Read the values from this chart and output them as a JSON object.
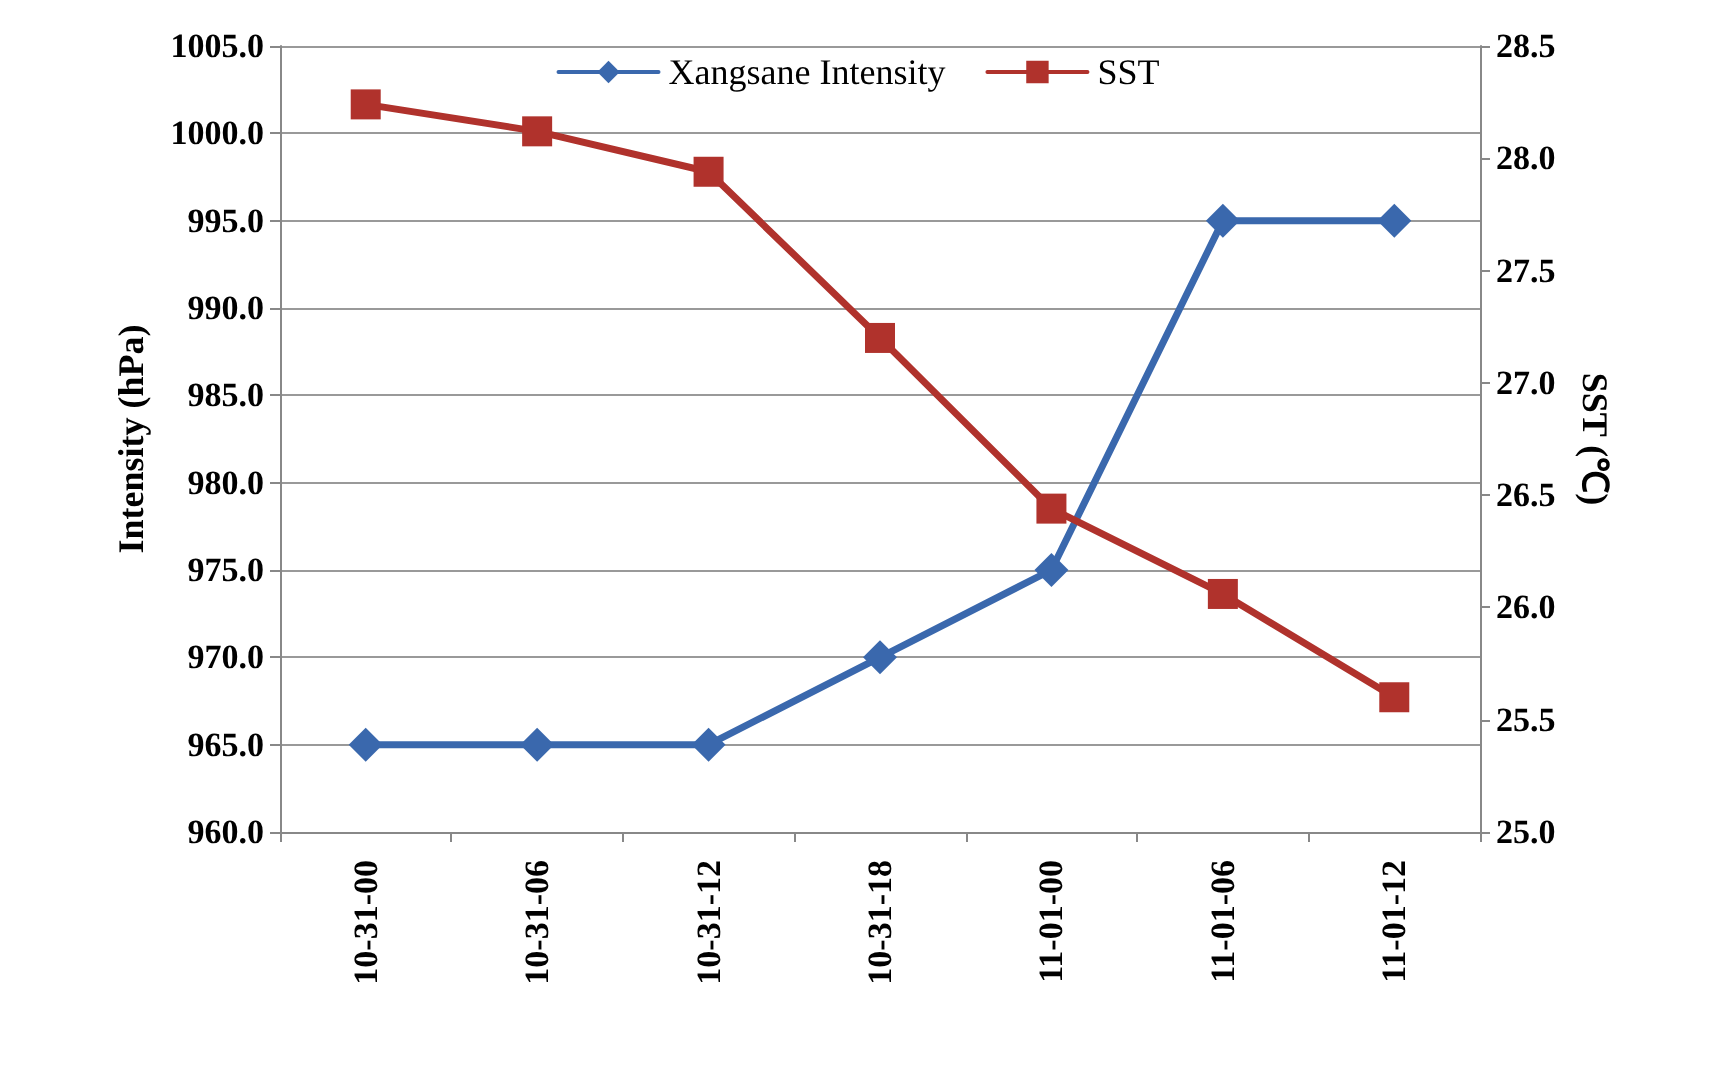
{
  "chart_data": {
    "type": "line",
    "categories": [
      "10-31-00",
      "10-31-06",
      "10-31-12",
      "10-31-18",
      "11-01-00",
      "11-01-06",
      "11-01-12"
    ],
    "ylabel": "Intensity (hPa)",
    "y2label": "SST (℃)",
    "series": [
      {
        "name": "Xangsane Intensity",
        "color": "#3a68ad",
        "marker": "diamond",
        "values": [
          965,
          965,
          965,
          970,
          975,
          995,
          995
        ]
      },
      {
        "name": "SST",
        "color": "#b0322c",
        "marker": "square",
        "axis": "y2",
        "values": [
          28.24,
          28.12,
          27.94,
          27.2,
          26.44,
          26.06,
          25.6
        ]
      }
    ],
    "ylim": [
      960,
      1005
    ],
    "yticks": [
      {
        "value": 960,
        "label": "960.0"
      },
      {
        "value": 965,
        "label": "965.0"
      },
      {
        "value": 970,
        "label": "970.0"
      },
      {
        "value": 975,
        "label": "975.0"
      },
      {
        "value": 980,
        "label": "980.0"
      },
      {
        "value": 985,
        "label": "985.0"
      },
      {
        "value": 990,
        "label": "990.0"
      },
      {
        "value": 995,
        "label": "995.0"
      },
      {
        "value": 1000,
        "label": "1000.0"
      },
      {
        "value": 1005,
        "label": "1005.0"
      }
    ],
    "y2lim": [
      25,
      28.5
    ],
    "y2ticks": [
      {
        "value": 25,
        "label": "25.0"
      },
      {
        "value": 25.5,
        "label": "25.5"
      },
      {
        "value": 26,
        "label": "26.0"
      },
      {
        "value": 26.5,
        "label": "26.5"
      },
      {
        "value": 27,
        "label": "27.0"
      },
      {
        "value": 27.5,
        "label": "27.5"
      },
      {
        "value": 28,
        "label": "28.0"
      },
      {
        "value": 28.5,
        "label": "28.5"
      }
    ],
    "grid": "y",
    "legend": "top",
    "line_style": "solid"
  }
}
